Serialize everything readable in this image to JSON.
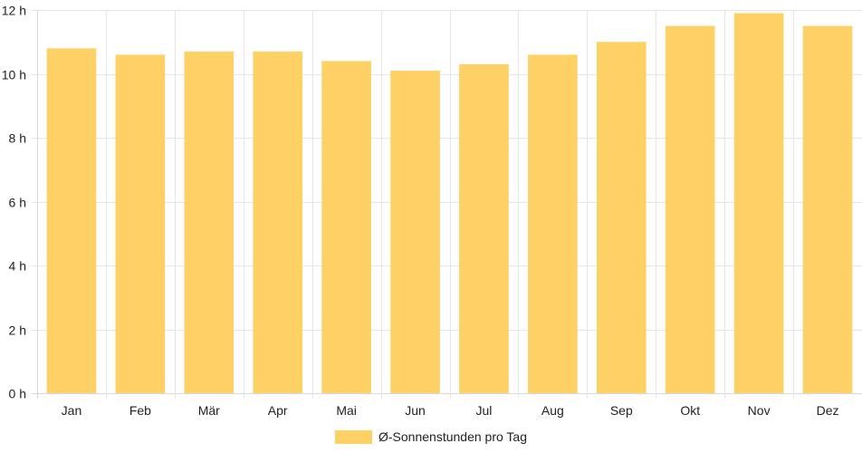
{
  "chart_data": {
    "type": "bar",
    "categories": [
      "Jan",
      "Feb",
      "Mär",
      "Apr",
      "Mai",
      "Jun",
      "Jul",
      "Aug",
      "Sep",
      "Okt",
      "Nov",
      "Dez"
    ],
    "series": [
      {
        "name": "Ø-Sonnenstunden pro Tag",
        "values": [
          10.8,
          10.6,
          10.7,
          10.7,
          10.4,
          10.1,
          10.3,
          10.6,
          11.0,
          11.5,
          11.9,
          11.5
        ],
        "color": "#fed166"
      }
    ],
    "y_ticks": [
      "0 h",
      "2 h",
      "4 h",
      "6 h",
      "8 h",
      "10 h",
      "12 h"
    ],
    "ylim": [
      0,
      12
    ],
    "y_unit": "h",
    "grid": true,
    "grid_color": "#e6e6e6",
    "axis_color": "#d9d9d9",
    "legend_position": "bottom-center",
    "title": "",
    "xlabel": "",
    "ylabel": ""
  }
}
